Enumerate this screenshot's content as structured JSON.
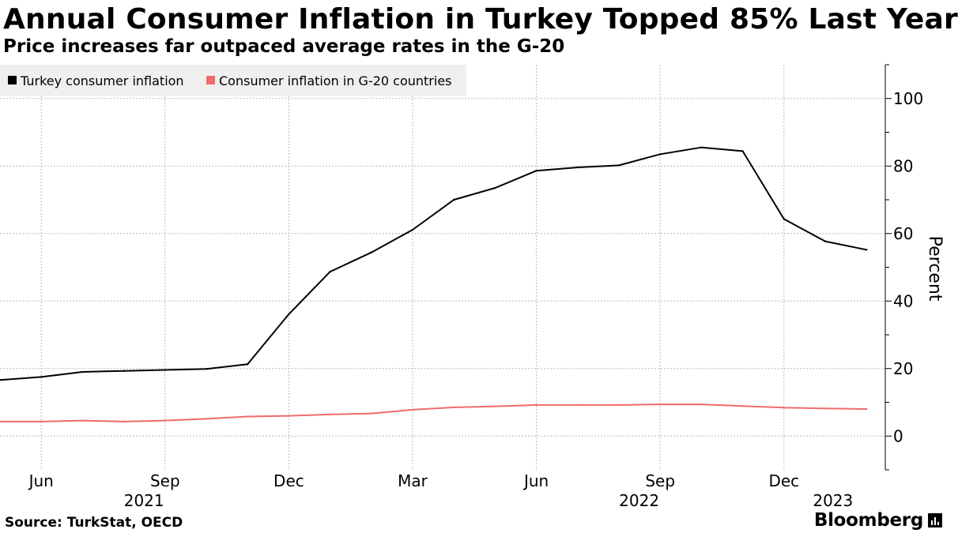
{
  "header": {
    "title": "Annual Consumer Inflation in Turkey Topped 85% Last Year",
    "subtitle": "Price increases far outpaced average rates in the G-20"
  },
  "footer": {
    "source": "Source: TurkStat, OECD",
    "brand": "Bloomberg"
  },
  "chart_data": {
    "type": "line",
    "title": "Annual Consumer Inflation in Turkey Topped 85% Last Year",
    "subtitle": "Price increases far outpaced average rates in the G-20",
    "ylabel": "Percent",
    "ylim": [
      -10,
      110
    ],
    "yticks": [
      0,
      20,
      40,
      60,
      80,
      100
    ],
    "grid": true,
    "legend_position": "top-left",
    "x": [
      "2021-05",
      "2021-06",
      "2021-07",
      "2021-08",
      "2021-09",
      "2021-10",
      "2021-11",
      "2021-12",
      "2022-01",
      "2022-02",
      "2022-03",
      "2022-04",
      "2022-05",
      "2022-06",
      "2022-07",
      "2022-08",
      "2022-09",
      "2022-10",
      "2022-11",
      "2022-12",
      "2023-01",
      "2023-02"
    ],
    "xticks": [
      {
        "at": "2021-06",
        "label": "Jun",
        "year": "2021"
      },
      {
        "at": "2021-09",
        "label": "Sep",
        "year": ""
      },
      {
        "at": "2021-12",
        "label": "Dec",
        "year": ""
      },
      {
        "at": "2022-03",
        "label": "Mar",
        "year": ""
      },
      {
        "at": "2022-06",
        "label": "Jun",
        "year": "2022"
      },
      {
        "at": "2022-09",
        "label": "Sep",
        "year": ""
      },
      {
        "at": "2022-12",
        "label": "Dec",
        "year": "2023"
      }
    ],
    "series": [
      {
        "name": "Turkey consumer inflation",
        "color": "#000000",
        "values": [
          16.6,
          17.5,
          19.0,
          19.3,
          19.6,
          19.9,
          21.3,
          36.1,
          48.7,
          54.4,
          61.1,
          70.0,
          73.5,
          78.6,
          79.6,
          80.2,
          83.5,
          85.5,
          84.4,
          64.3,
          57.7,
          55.2
        ]
      },
      {
        "name": "Consumer inflation in G-20 countries",
        "color": "#f26b6b",
        "values": [
          4.3,
          4.3,
          4.6,
          4.3,
          4.6,
          5.1,
          5.8,
          6.0,
          6.4,
          6.7,
          7.8,
          8.5,
          8.8,
          9.2,
          9.2,
          9.2,
          9.4,
          9.4,
          8.9,
          8.4,
          8.2,
          8.0
        ]
      }
    ]
  }
}
